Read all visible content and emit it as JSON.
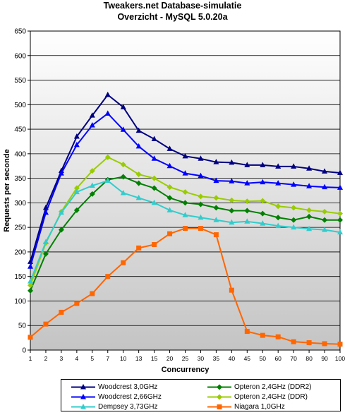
{
  "chart_data": {
    "type": "line",
    "title": "Tweakers.net Database-simulatie",
    "subtitle": "Overzicht - MySQL 5.0.20a",
    "xlabel": "Concurrency",
    "ylabel": "Requests per seconde",
    "ylim": [
      0,
      650
    ],
    "yticks": [
      0,
      50,
      100,
      150,
      200,
      250,
      300,
      350,
      400,
      450,
      500,
      550,
      600,
      650
    ],
    "categories": [
      "1",
      "2",
      "3",
      "4",
      "5",
      "7",
      "10",
      "13",
      "15",
      "20",
      "25",
      "30",
      "35",
      "40",
      "45",
      "50",
      "60",
      "70",
      "80",
      "90",
      "100"
    ],
    "grid": "horizontal",
    "legend_position": "bottom",
    "series": [
      {
        "name": "Woodcrest 3,0GHz",
        "color": "#000080",
        "marker": "triangle",
        "values": [
          180,
          290,
          365,
          435,
          478,
          520,
          495,
          447,
          430,
          410,
          395,
          390,
          383,
          382,
          377,
          377,
          374,
          374,
          370,
          364,
          361
        ]
      },
      {
        "name": "Opteron 2,4GHz (DDR2)",
        "color": "#008000",
        "marker": "diamond",
        "values": [
          121,
          196,
          245,
          285,
          318,
          347,
          353,
          340,
          330,
          310,
          300,
          297,
          290,
          284,
          284,
          278,
          270,
          265,
          272,
          265,
          265
        ]
      },
      {
        "name": "Woodcrest 2,66GHz",
        "color": "#0000ff",
        "marker": "triangle",
        "values": [
          170,
          280,
          360,
          418,
          458,
          482,
          449,
          415,
          390,
          375,
          360,
          355,
          345,
          344,
          340,
          342,
          340,
          337,
          334,
          332,
          331
        ]
      },
      {
        "name": "Opteron 2,4GHz (DDR)",
        "color": "#99cc00",
        "marker": "diamond",
        "values": [
          132,
          218,
          282,
          330,
          365,
          393,
          378,
          358,
          350,
          332,
          322,
          313,
          310,
          305,
          303,
          304,
          293,
          290,
          285,
          282,
          278
        ]
      },
      {
        "name": "Dempsey 3,73GHz",
        "color": "#33cccc",
        "marker": "triangle",
        "values": [
          140,
          220,
          280,
          322,
          335,
          345,
          320,
          310,
          300,
          285,
          275,
          270,
          265,
          260,
          262,
          258,
          253,
          250,
          247,
          245,
          240
        ]
      },
      {
        "name": "Niagara 1,0GHz",
        "color": "#ff6600",
        "marker": "square",
        "values": [
          26,
          53,
          77,
          95,
          115,
          150,
          178,
          208,
          215,
          237,
          248,
          248,
          235,
          122,
          38,
          30,
          27,
          17,
          15,
          13,
          12
        ]
      }
    ]
  }
}
